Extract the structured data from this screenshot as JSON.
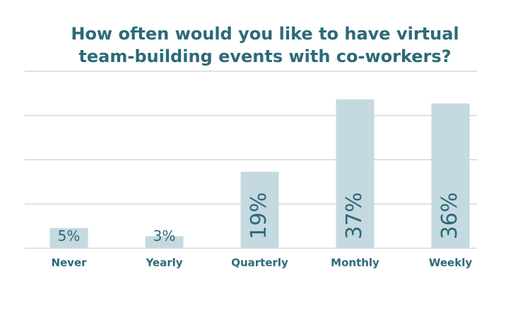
{
  "chart_data": {
    "type": "bar",
    "title": "How often would you like to have virtual team-building events with co-workers?",
    "categories": [
      "Never",
      "Yearly",
      "Quarterly",
      "Monthly",
      "Weekly"
    ],
    "values": [
      5,
      3,
      19,
      37,
      36
    ],
    "value_labels": [
      "5%",
      "3%",
      "19%",
      "37%",
      "36%"
    ],
    "color": "#c5d9e1",
    "ylim": [
      0,
      44
    ],
    "yticks": [
      0,
      11,
      22,
      33,
      44
    ],
    "grid": true
  }
}
